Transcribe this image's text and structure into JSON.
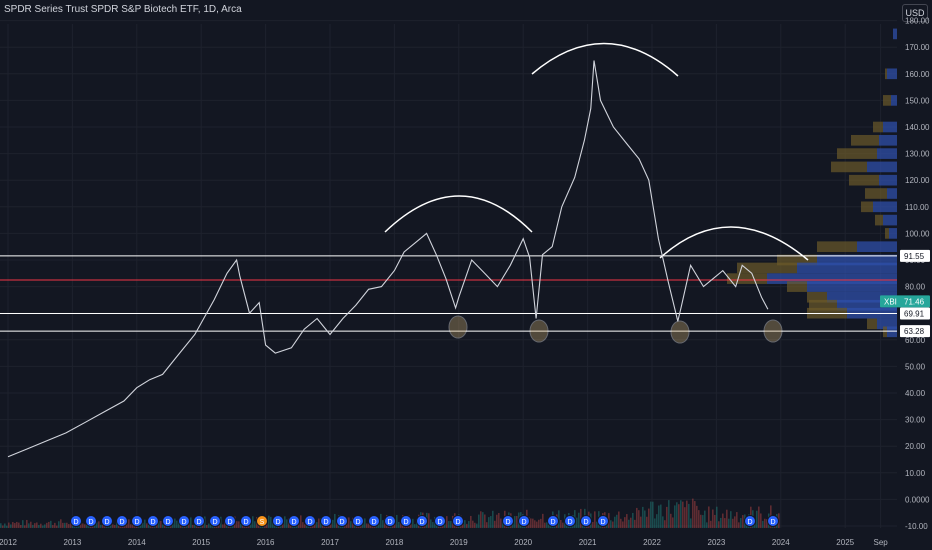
{
  "header": {
    "title": "SPDR Series Trust SPDR S&P Biotech ETF, 1D, Arca",
    "currency": "USD"
  },
  "chart_data": {
    "type": "line",
    "title": "SPDR Series Trust SPDR S&P Biotech ETF, 1D, Arca",
    "ylabel": "USD",
    "ylim": [
      -13,
      190
    ],
    "y_ticks": [
      "-10.00",
      "0.0000",
      "10.00",
      "20.00",
      "30.00",
      "40.00",
      "50.00",
      "60.00",
      "70.00",
      "80.00",
      "90.00",
      "100.00",
      "110.00",
      "120.00",
      "130.00",
      "140.00",
      "150.00",
      "160.00",
      "170.00",
      "180.00"
    ],
    "x_ticks": [
      "2012",
      "2013",
      "2014",
      "2015",
      "2016",
      "2017",
      "2018",
      "2019",
      "2020",
      "2021",
      "2022",
      "2023",
      "2024",
      "2025",
      "Sep"
    ],
    "xlim": [
      2012.0,
      2025.6
    ],
    "series": [
      {
        "name": "XBI",
        "color": "#d1d4dc",
        "x": [
          2012.0,
          2012.3,
          2012.6,
          2012.9,
          2013.2,
          2013.5,
          2013.8,
          2014.0,
          2014.2,
          2014.4,
          2014.6,
          2014.9,
          2015.2,
          2015.4,
          2015.55,
          2015.6,
          2015.75,
          2015.9,
          2016.0,
          2016.15,
          2016.4,
          2016.6,
          2016.8,
          2017.0,
          2017.2,
          2017.4,
          2017.6,
          2017.8,
          2018.0,
          2018.15,
          2018.35,
          2018.5,
          2018.65,
          2018.8,
          2018.95,
          2019.0,
          2019.2,
          2019.4,
          2019.6,
          2019.8,
          2020.0,
          2020.1,
          2020.2,
          2020.3,
          2020.45,
          2020.6,
          2020.8,
          2020.95,
          2021.05,
          2021.1,
          2021.2,
          2021.4,
          2021.6,
          2021.8,
          2021.95,
          2022.1,
          2022.25,
          2022.4,
          2022.45,
          2022.6,
          2022.8,
          2022.95,
          2023.1,
          2023.3,
          2023.4,
          2023.55,
          2023.7,
          2023.8
        ],
        "values": [
          16,
          19,
          22,
          25,
          29,
          33,
          37,
          42,
          45,
          47,
          53,
          62,
          75,
          85,
          90,
          84,
          70,
          74,
          58,
          55,
          57,
          64,
          68,
          62,
          68,
          73,
          79,
          80,
          86,
          93,
          97,
          100,
          92,
          83,
          72,
          76,
          90,
          85,
          80,
          88,
          98,
          91,
          68,
          92,
          95,
          110,
          121,
          135,
          147,
          165,
          150,
          140,
          134,
          128,
          120,
          98,
          82,
          67,
          72,
          88,
          80,
          83,
          86,
          80,
          88,
          85,
          76,
          71.46
        ]
      }
    ],
    "horizontal_levels": [
      {
        "label": "91.55",
        "value": 91.55,
        "color": "#ffffff"
      },
      {
        "label": "82.50",
        "value": 82.5,
        "color": "#f23645"
      },
      {
        "label": "69.91",
        "value": 69.91,
        "color": "#ffffff"
      },
      {
        "label": "63.28",
        "value": 63.28,
        "color": "#ffffff"
      }
    ],
    "price_labels": {
      "last_symbol": "XBI",
      "last_value": "71.46",
      "level_1": "91.55",
      "level_2": "69.91",
      "level_3": "63.28"
    },
    "volume_profile_note": "right side volume-by-price histogram",
    "event_markers": [
      "D",
      "D",
      "D",
      "D",
      "D",
      "D",
      "D",
      "D",
      "D",
      "D",
      "D",
      "D",
      "D",
      "S",
      "D",
      "D",
      "D",
      "D",
      "D",
      "D",
      "D",
      "D",
      "D",
      "D",
      "D",
      "D",
      "D",
      "D",
      "D",
      "D",
      "D",
      "D",
      "D",
      "D",
      "D",
      "D",
      "D"
    ],
    "colors": {
      "background": "#131722",
      "grid": "#1e222d",
      "price": "#d1d4dc",
      "up": "#26a69a",
      "down": "#ef5350",
      "profile_blue": "#2f4fa8",
      "profile_orange": "#6b5a2a",
      "symbol_badge": "#26a69a"
    }
  }
}
